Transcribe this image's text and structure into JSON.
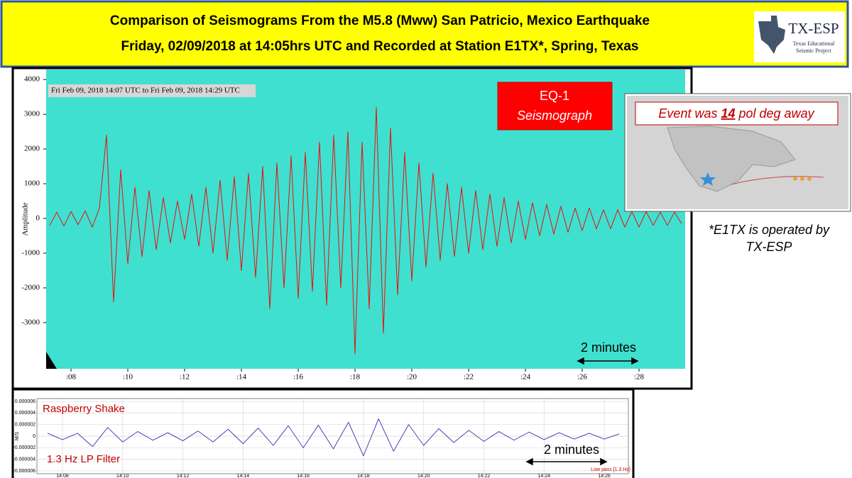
{
  "header": {
    "title_lines": [
      "Comparison of Seismograms From the M5.8 (Mww) San Patricio, Mexico Earthquake",
      "Friday, 02/09/2018 at 14:05hrs UTC and Recorded at Station E1TX*, Spring, Texas"
    ]
  },
  "logo": {
    "name": "TX-ESP",
    "subtitle_lines": [
      "Texas Educational",
      "Seismic Project"
    ]
  },
  "map": {
    "label_parts": [
      "Event was ",
      "14",
      " pol deg away"
    ]
  },
  "note": {
    "lines": [
      "*E1TX is operated by",
      "TX-ESP"
    ]
  },
  "chart_data": [
    {
      "type": "line",
      "subtitle": "Fri Feb 09, 2018 14:07 UTC to Fri Feb 09, 2018 14:29 UTC",
      "y_label": "Amplitude",
      "annotations": [
        "EQ-1",
        "Seismograph",
        "2 minutes"
      ],
      "color": "#e8100c",
      "grid": false,
      "x": [
        7.25,
        7.5,
        7.75,
        8,
        8.25,
        8.5,
        8.75,
        9,
        9.25,
        9.5,
        9.75,
        10,
        10.25,
        10.5,
        10.75,
        11,
        11.25,
        11.5,
        11.75,
        12,
        12.25,
        12.5,
        12.75,
        13,
        13.25,
        13.5,
        13.75,
        14,
        14.25,
        14.5,
        14.75,
        15,
        15.25,
        15.5,
        15.75,
        16,
        16.25,
        16.5,
        16.75,
        17,
        17.25,
        17.5,
        17.75,
        18,
        18.25,
        18.5,
        18.75,
        19,
        19.25,
        19.5,
        19.75,
        20,
        20.25,
        20.5,
        20.75,
        21,
        21.25,
        21.5,
        21.75,
        22,
        22.25,
        22.5,
        22.75,
        23,
        23.25,
        23.5,
        23.75,
        24,
        24.25,
        24.5,
        24.75,
        25,
        25.25,
        25.5,
        25.75,
        26,
        26.25,
        26.5,
        26.75,
        27,
        27.25,
        27.5,
        27.75,
        28,
        28.25,
        28.5,
        28.75,
        29,
        29.25,
        29.5
      ],
      "values": [
        -200,
        180,
        -220,
        200,
        -180,
        220,
        -250,
        300,
        2400,
        -2400,
        1400,
        -1300,
        900,
        -1100,
        800,
        -900,
        600,
        -700,
        500,
        -600,
        700,
        -800,
        900,
        -1000,
        1100,
        -1200,
        1200,
        -1500,
        1300,
        -1700,
        1500,
        -2600,
        1600,
        -2000,
        1800,
        -2300,
        1900,
        -2100,
        2200,
        -2500,
        2400,
        -2000,
        2500,
        -3900,
        2200,
        -2600,
        3200,
        -3300,
        2600,
        -2200,
        1900,
        -1800,
        1600,
        -1400,
        1300,
        -1200,
        1000,
        -1100,
        900,
        -1000,
        800,
        -900,
        700,
        -800,
        600,
        -700,
        500,
        -600,
        450,
        -500,
        400,
        -450,
        350,
        -400,
        300,
        -350,
        300,
        -300,
        250,
        -300,
        250,
        -250,
        200,
        -250,
        200,
        -200,
        180,
        -200,
        180,
        -150
      ],
      "xlim": [
        7.125,
        29.625
      ],
      "ylim": [
        -4330,
        4290
      ],
      "xticks": [
        {
          "value": 8,
          "label": ":08"
        },
        {
          "value": 10,
          "label": ":10"
        },
        {
          "value": 12,
          "label": ":12"
        },
        {
          "value": 14,
          "label": ":14"
        },
        {
          "value": 16,
          "label": ":16"
        },
        {
          "value": 18,
          "label": ":18"
        },
        {
          "value": 20,
          "label": ":20"
        },
        {
          "value": 22,
          "label": ":22"
        },
        {
          "value": 24,
          "label": ":24"
        },
        {
          "value": 26,
          "label": ":26"
        },
        {
          "value": 28,
          "label": ":28"
        }
      ],
      "yticks": [
        4000,
        3000,
        2000,
        1000,
        0,
        -1000,
        -2000,
        -3000
      ]
    },
    {
      "type": "line",
      "y_label": "M/S",
      "annotations": [
        "Raspberry Shake",
        "1.3 Hz LP Filter",
        "2 minutes",
        "Low pass [1.3 Hz]"
      ],
      "color": "#1a1aa8",
      "grid": true,
      "x": [
        7.5,
        8,
        8.5,
        9,
        9.5,
        10,
        10.5,
        11,
        11.5,
        12,
        12.5,
        13,
        13.5,
        14,
        14.5,
        15,
        15.5,
        16,
        16.5,
        17,
        17.5,
        18,
        18.5,
        19,
        19.5,
        20,
        20.5,
        21,
        21.5,
        22,
        22.5,
        23,
        23.5,
        24,
        24.5,
        25,
        25.5,
        26,
        26.5
      ],
      "values": [
        5e-07,
        -6e-07,
        5e-07,
        -1.8e-06,
        1.5e-06,
        -1e-06,
        8e-07,
        -7e-07,
        6e-07,
        -8e-07,
        9e-07,
        -1e-06,
        1.2e-06,
        -1.3e-06,
        1.4e-06,
        -1.6e-06,
        1.8e-06,
        -2e-06,
        1.9e-06,
        -2.2e-06,
        2.4e-06,
        -3.4e-06,
        3e-06,
        -2.6e-06,
        2e-06,
        -1.6e-06,
        1.3e-06,
        -1.1e-06,
        1e-06,
        -9e-07,
        8e-07,
        -7e-07,
        7e-07,
        -6e-07,
        6e-07,
        -5e-07,
        5e-07,
        -5e-07,
        4e-07
      ],
      "xlim": [
        7.15,
        26.8
      ],
      "ylim": [
        -6.5e-06,
        6.5e-06
      ],
      "xticks": [
        {
          "value": 8,
          "label": "14:08"
        },
        {
          "value": 10,
          "label": "14:10"
        },
        {
          "value": 12,
          "label": "14:12"
        },
        {
          "value": 14,
          "label": "14:14"
        },
        {
          "value": 16,
          "label": "14:16"
        },
        {
          "value": 18,
          "label": "14:18"
        },
        {
          "value": 20,
          "label": "14:20"
        },
        {
          "value": 22,
          "label": "14:22"
        },
        {
          "value": 24,
          "label": "14:24"
        },
        {
          "value": 26,
          "label": "14:26"
        }
      ],
      "yticks": [
        6e-06,
        4e-06,
        2e-06,
        0,
        -2e-06,
        -4e-06,
        -6e-06
      ]
    }
  ]
}
